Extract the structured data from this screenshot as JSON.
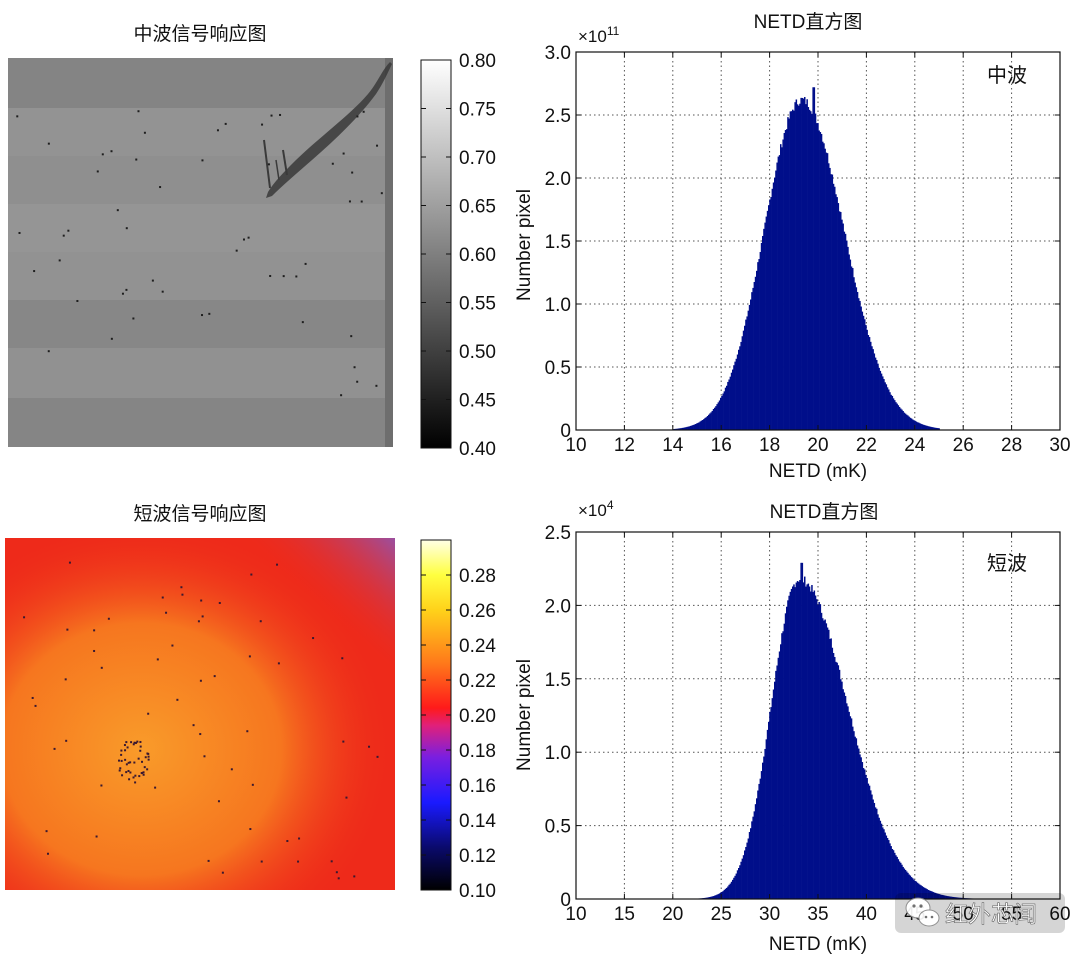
{
  "chart_data": [
    {
      "type": "heatmap",
      "title": "中波信号响应图",
      "colormap": "gray",
      "colorbar": {
        "range": [
          0.4,
          0.8
        ],
        "ticks": [
          "0.80",
          "0.75",
          "0.70",
          "0.65",
          "0.60",
          "0.55",
          "0.50",
          "0.45",
          "0.40"
        ]
      },
      "colors": {
        "base": "#8c8c8c",
        "dark_band": "#838383",
        "light_band": "#979797",
        "scratch": "#3a3a3a",
        "defect": "#1e1e1e"
      }
    },
    {
      "type": "bar",
      "title": "NETD直方图",
      "xlabel": "NETD (mK)",
      "ylabel": "Number pixel",
      "exponent_label": "×10",
      "exponent_power": "11",
      "annotation": "中波",
      "xlim": [
        10,
        30
      ],
      "ylim": [
        0,
        3.0
      ],
      "xticks": [
        "10",
        "12",
        "14",
        "16",
        "18",
        "20",
        "22",
        "24",
        "26",
        "28",
        "30"
      ],
      "yticks": [
        "0",
        "0.5",
        "1.0",
        "1.5",
        "2.0",
        "2.5",
        "3.0"
      ],
      "grid": true,
      "bar_color": "#000e8a",
      "distribution": {
        "mean": 19.3,
        "peak": 2.62,
        "sigma_left": 1.55,
        "sigma_right": 1.75,
        "start": 14.0,
        "end": 25.0,
        "spike_x": 19.8,
        "spike_y": 2.72
      }
    },
    {
      "type": "heatmap",
      "title": "短波信号响应图",
      "colormap": "hot-custom",
      "colorbar": {
        "range": [
          0.1,
          0.3
        ],
        "ticks": [
          "0.28",
          "0.26",
          "0.24",
          "0.22",
          "0.20",
          "0.18",
          "0.16",
          "0.14",
          "0.12",
          "0.10"
        ]
      },
      "colors": {
        "edge": "#ee2a1a",
        "center": "#f99b2a",
        "corner": "#9b4fa0",
        "defect": "#3a1830"
      }
    },
    {
      "type": "bar",
      "title": "NETD直方图",
      "xlabel": "NETD (mK)",
      "ylabel": "Number pixel",
      "exponent_label": "×10",
      "exponent_power": "4",
      "annotation": "短波",
      "xlim": [
        10,
        60
      ],
      "ylim": [
        0,
        2.5
      ],
      "xticks": [
        "10",
        "15",
        "20",
        "25",
        "30",
        "35",
        "40",
        "45",
        "50",
        "55",
        "60"
      ],
      "yticks": [
        "0",
        "0.5",
        "1.0",
        "1.5",
        "2.0",
        "2.5"
      ],
      "grid": true,
      "bar_color": "#000e8a",
      "distribution": {
        "mean": 33.0,
        "peak": 2.18,
        "sigma_left": 2.9,
        "sigma_right": 5.0,
        "start": 22.5,
        "end": 52.0,
        "spike_x": 33.2,
        "spike_y": 2.29
      }
    }
  ],
  "watermark": {
    "text": "红外芯闻",
    "icon": "wechat-icon"
  }
}
